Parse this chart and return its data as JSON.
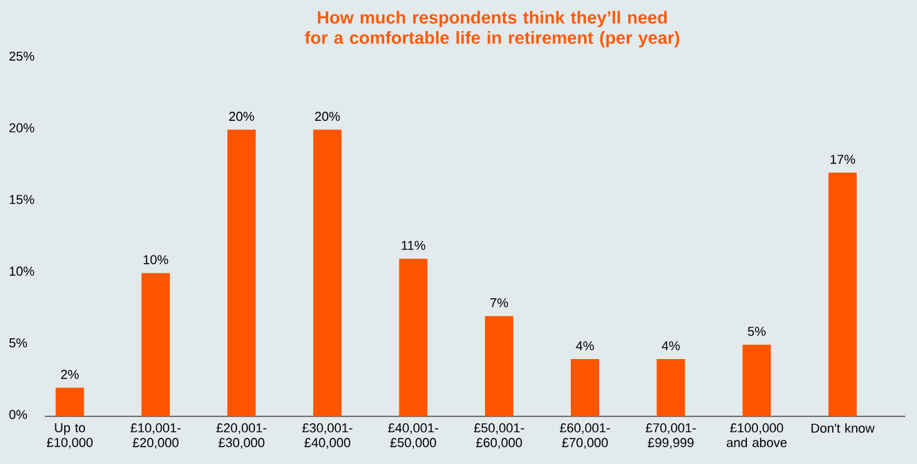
{
  "chart_data": {
    "type": "bar",
    "title": "How much respondents think they’ll need for a comfortable life in retirement (per year)",
    "categories": [
      "Up to £10,000",
      "£10,001-£20,000",
      "£20,001-£30,000",
      "£30,001-£40,000",
      "£40,001-£50,000",
      "£50,001-£60,000",
      "£60,001-£70,000",
      "£70,001-£99,999",
      "£100,000 and above",
      "Don't know"
    ],
    "values": [
      2,
      10,
      20,
      20,
      11,
      7,
      4,
      4,
      5,
      17
    ],
    "value_labels": [
      "2%",
      "10%",
      "20%",
      "20%",
      "11%",
      "7%",
      "4%",
      "4%",
      "5%",
      "17%"
    ],
    "color": "#ff5500",
    "ylim": [
      0,
      25
    ],
    "yticks": [
      {
        "value": 0,
        "label": "0%"
      },
      {
        "value": 5,
        "label": "5%"
      },
      {
        "value": 10,
        "label": "10%"
      },
      {
        "value": 15,
        "label": "15%"
      },
      {
        "value": 20,
        "label": "20%"
      },
      {
        "value": 25,
        "label": "25%"
      }
    ],
    "grid": false
  }
}
